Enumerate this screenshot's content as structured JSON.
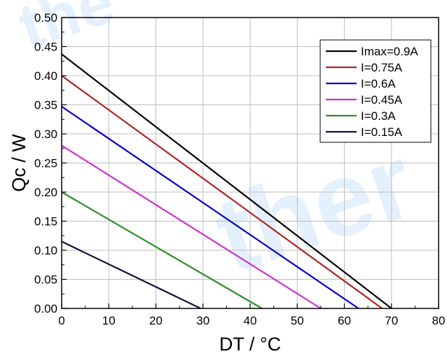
{
  "chart_data": {
    "type": "line",
    "xlabel": "DT / °C",
    "ylabel": "Qc / W",
    "xlim": [
      0,
      80
    ],
    "ylim": [
      0,
      0.5
    ],
    "xticks": [
      "0",
      "10",
      "20",
      "30",
      "40",
      "50",
      "60",
      "70",
      "80"
    ],
    "yticks": [
      "0.00",
      "0.05",
      "0.10",
      "0.15",
      "0.20",
      "0.25",
      "0.30",
      "0.35",
      "0.40",
      "0.45",
      "0.50"
    ],
    "grid": true,
    "legend_position": "top-right",
    "series": [
      {
        "name": "Imax=0.9A",
        "color": "#000000",
        "x": [
          0,
          70
        ],
        "y": [
          0.437,
          0
        ]
      },
      {
        "name": "I=0.75A",
        "color": "#b22222",
        "x": [
          0,
          68
        ],
        "y": [
          0.4,
          0
        ]
      },
      {
        "name": "I=0.6A",
        "color": "#0000cc",
        "x": [
          0,
          63
        ],
        "y": [
          0.347,
          0
        ]
      },
      {
        "name": "I=0.45A",
        "color": "#cc33cc",
        "x": [
          0,
          55
        ],
        "y": [
          0.28,
          0
        ]
      },
      {
        "name": "I=0.3A",
        "color": "#2e8b2e",
        "x": [
          0,
          42.5
        ],
        "y": [
          0.2,
          0
        ]
      },
      {
        "name": "I=0.15A",
        "color": "#101040",
        "x": [
          0,
          29.5
        ],
        "y": [
          0.115,
          0
        ]
      }
    ]
  }
}
